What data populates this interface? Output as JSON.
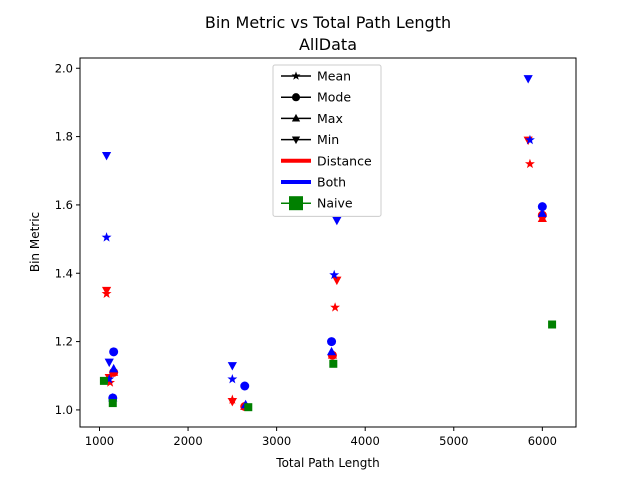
{
  "chart_data": {
    "type": "scatter",
    "title": "Bin Metric vs Total Path Length",
    "subtitle": "AllData",
    "xlabel": "Total Path Length",
    "ylabel": "Bin Metric",
    "xlim": [
      780,
      6380
    ],
    "ylim": [
      0.95,
      2.03
    ],
    "x_ticks": [
      1000,
      2000,
      3000,
      4000,
      5000,
      6000
    ],
    "y_ticks": [
      1.0,
      1.2,
      1.4,
      1.6,
      1.8,
      2.0
    ],
    "x_tick_labels": [
      "1000",
      "2000",
      "3000",
      "4000",
      "5000",
      "6000"
    ],
    "y_tick_labels": [
      "1.0",
      "1.2",
      "1.4",
      "1.6",
      "1.8",
      "2.0"
    ],
    "grid": false,
    "legend_position": "top-center",
    "colors": {
      "Distance": "#ff0000",
      "Both": "#0000ff",
      "Naive": "#008000",
      "legend_line": "#000000"
    },
    "legend": [
      {
        "label": "Mean",
        "kind": "marker",
        "marker": "star"
      },
      {
        "label": "Mode",
        "kind": "marker",
        "marker": "circle"
      },
      {
        "label": "Max",
        "kind": "marker",
        "marker": "triangle-up"
      },
      {
        "label": "Min",
        "kind": "marker",
        "marker": "triangle-down"
      },
      {
        "label": "Distance",
        "kind": "color",
        "color": "#ff0000"
      },
      {
        "label": "Both",
        "kind": "color",
        "color": "#0000ff"
      },
      {
        "label": "Naive",
        "kind": "color",
        "color": "#008000"
      }
    ],
    "series": [
      {
        "method": "Distance",
        "stat": "Mean",
        "x": [
          1080,
          1120,
          2500,
          3660,
          5860
        ],
        "y": [
          1.34,
          1.08,
          1.03,
          1.3,
          1.72
        ]
      },
      {
        "method": "Distance",
        "stat": "Mode",
        "x": [
          1160,
          2640,
          3630,
          6000
        ],
        "y": [
          1.11,
          1.01,
          1.16,
          1.57
        ]
      },
      {
        "method": "Distance",
        "stat": "Max",
        "x": [
          1160,
          2640,
          3630,
          6000
        ],
        "y": [
          1.11,
          1.01,
          1.16,
          1.56
        ]
      },
      {
        "method": "Distance",
        "stat": "Min",
        "x": [
          1080,
          1110,
          2500,
          3680,
          5840
        ],
        "y": [
          1.35,
          1.095,
          1.025,
          1.38,
          1.79
        ]
      },
      {
        "method": "Both",
        "stat": "Mean",
        "x": [
          1080,
          1110,
          2500,
          3650,
          5860
        ],
        "y": [
          1.505,
          1.09,
          1.09,
          1.395,
          1.79
        ]
      },
      {
        "method": "Both",
        "stat": "Mode",
        "x": [
          1160,
          1150,
          2640,
          3620,
          6000
        ],
        "y": [
          1.17,
          1.035,
          1.07,
          1.2,
          1.595
        ]
      },
      {
        "method": "Both",
        "stat": "Max",
        "x": [
          1160,
          1150,
          2650,
          3620,
          6000
        ],
        "y": [
          1.12,
          1.035,
          1.015,
          1.17,
          1.575
        ]
      },
      {
        "method": "Both",
        "stat": "Min",
        "x": [
          1080,
          1110,
          2500,
          3680,
          5840
        ],
        "y": [
          1.745,
          1.14,
          1.13,
          1.555,
          1.97
        ]
      },
      {
        "method": "Naive",
        "stat": "Mean",
        "x": [
          1050,
          1150,
          2680,
          3640,
          6110
        ],
        "y": [
          1.085,
          1.02,
          1.008,
          1.135,
          1.25
        ]
      }
    ]
  }
}
